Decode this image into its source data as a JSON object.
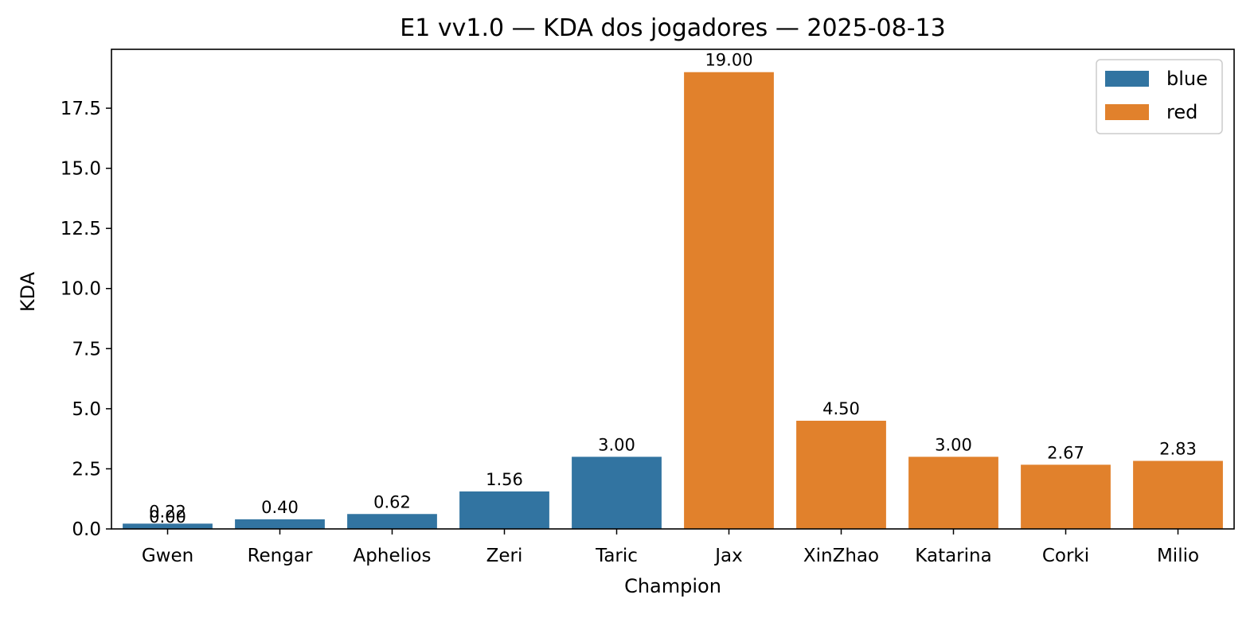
{
  "chart_data": {
    "type": "bar",
    "title": "E1 vv1.0 — KDA dos jogadores — 2025-08-13",
    "xlabel": "Champion",
    "ylabel": "KDA",
    "ylim": [
      0,
      19.95
    ],
    "yticks": [
      0.0,
      2.5,
      5.0,
      7.5,
      10.0,
      12.5,
      15.0,
      17.5
    ],
    "ytick_labels": [
      "0.0",
      "2.5",
      "5.0",
      "7.5",
      "10.0",
      "12.5",
      "15.0",
      "17.5"
    ],
    "grid": false,
    "legend_position": "top-right",
    "categories": [
      "Gwen",
      "Rengar",
      "Aphelios",
      "Zeri",
      "Taric",
      "Jax",
      "XinZhao",
      "Katarina",
      "Corki",
      "Milio"
    ],
    "series": [
      {
        "name": "blue",
        "color": "#3274a1",
        "values": [
          0.22,
          0.4,
          0.62,
          1.56,
          3.0,
          null,
          null,
          null,
          null,
          null
        ]
      },
      {
        "name": "red",
        "color": "#e1812c",
        "values": [
          0.0,
          null,
          null,
          null,
          null,
          19.0,
          4.5,
          3.0,
          2.67,
          2.83
        ]
      }
    ],
    "bar_labels": [
      {
        "category": "Gwen",
        "series": "blue",
        "text": "0.22"
      },
      {
        "category": "Gwen",
        "series": "red",
        "text": "0.00"
      },
      {
        "category": "Rengar",
        "series": "blue",
        "text": "0.40"
      },
      {
        "category": "Aphelios",
        "series": "blue",
        "text": "0.62"
      },
      {
        "category": "Zeri",
        "series": "blue",
        "text": "1.56"
      },
      {
        "category": "Taric",
        "series": "blue",
        "text": "3.00"
      },
      {
        "category": "Jax",
        "series": "red",
        "text": "19.00"
      },
      {
        "category": "XinZhao",
        "series": "red",
        "text": "4.50"
      },
      {
        "category": "Katarina",
        "series": "red",
        "text": "3.00"
      },
      {
        "category": "Corki",
        "series": "red",
        "text": "2.67"
      },
      {
        "category": "Milio",
        "series": "red",
        "text": "2.83"
      }
    ]
  }
}
